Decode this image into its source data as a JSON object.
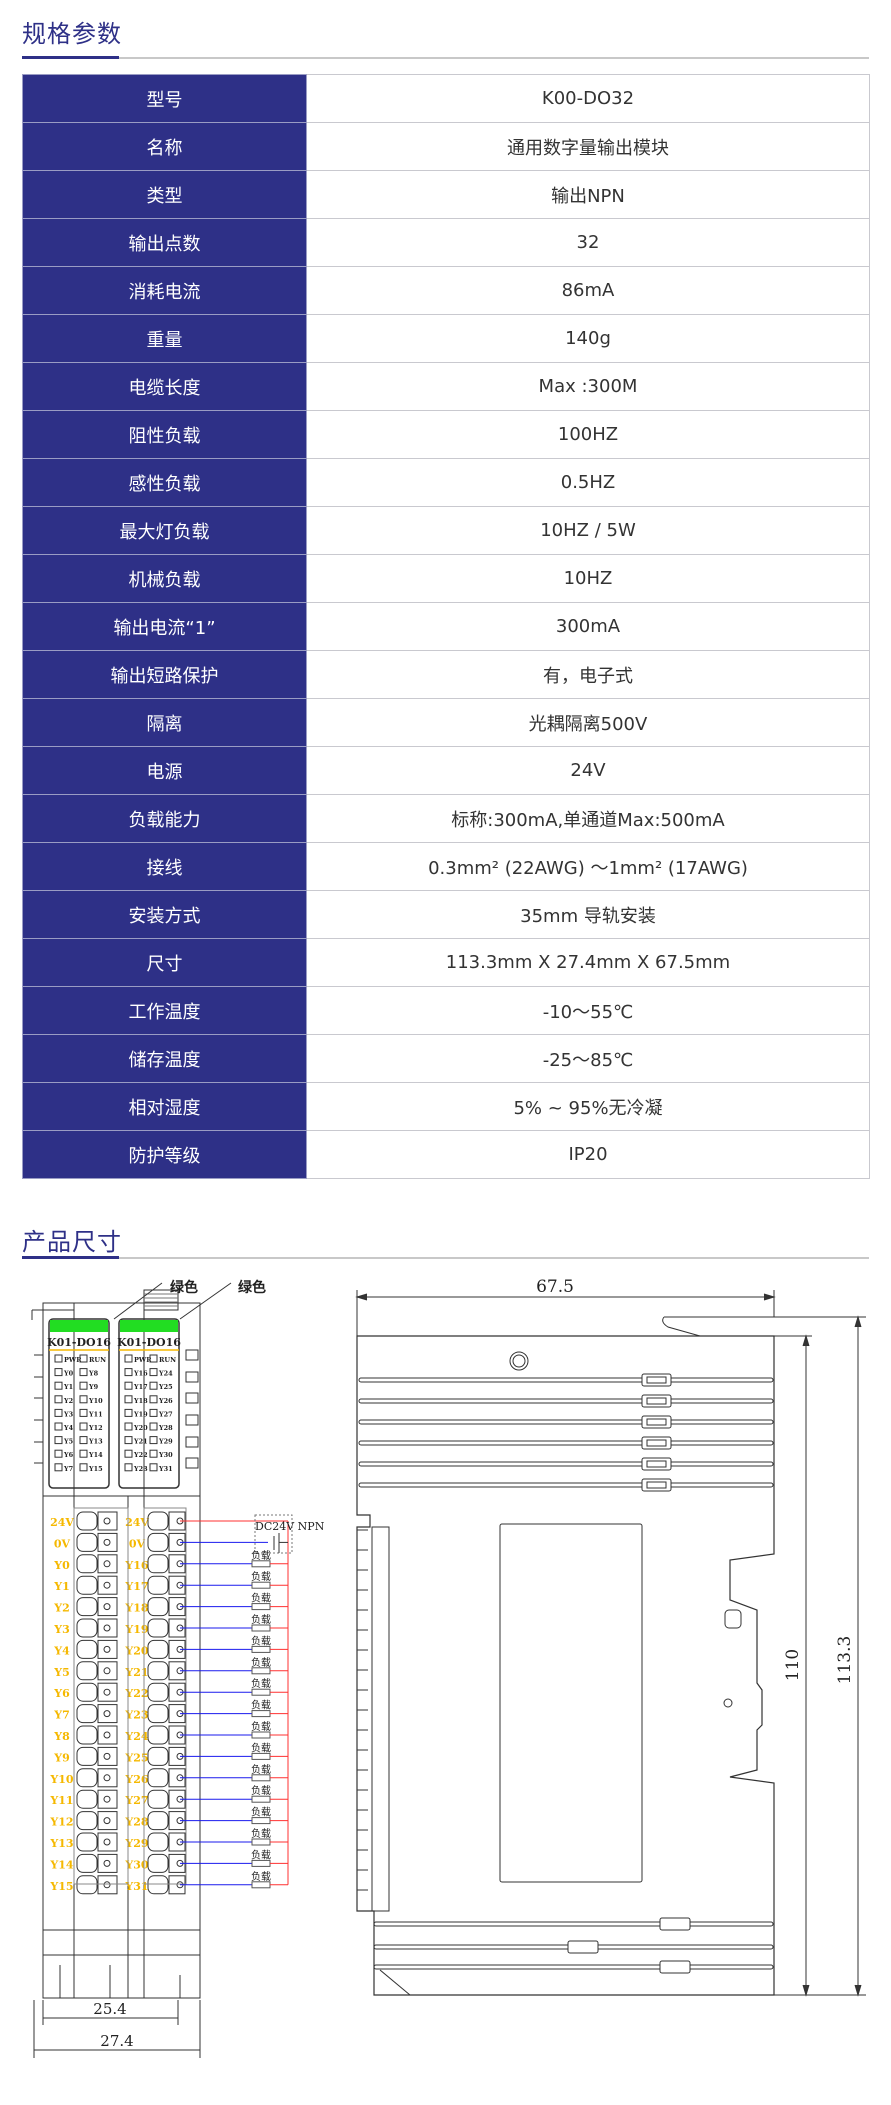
{
  "specs": {
    "title": "规格参数",
    "rows": [
      {
        "label": "型号",
        "value": "K00-DO32"
      },
      {
        "label": "名称",
        "value": "通用数字量输出模块"
      },
      {
        "label": "类型",
        "value": "输出NPN"
      },
      {
        "label": "输出点数",
        "value": "32"
      },
      {
        "label": "消耗电流",
        "value": "86mA"
      },
      {
        "label": "重量",
        "value": "140g"
      },
      {
        "label": "电缆长度",
        "value": "Max :300M"
      },
      {
        "label": "阻性负载",
        "value": "100HZ"
      },
      {
        "label": "感性负载",
        "value": "0.5HZ"
      },
      {
        "label": "最大灯负载",
        "value": "10HZ / 5W"
      },
      {
        "label": "机械负载",
        "value": "10HZ"
      },
      {
        "label": "输出电流“1”",
        "value": "300mA"
      },
      {
        "label": "输出短路保护",
        "value": "有，电子式"
      },
      {
        "label": "隔离",
        "value": "光耦隔离500V"
      },
      {
        "label": "电源",
        "value": "24V"
      },
      {
        "label": "负载能力",
        "value": "标称:300mA,单通道Max:500mA"
      },
      {
        "label": "接线",
        "value": "0.3mm² (22AWG) ～1mm² (17AWG)"
      },
      {
        "label": "安装方式",
        "value": "35mm 导轨安装"
      },
      {
        "label": "尺寸",
        "value": "113.3mm X 27.4mm X 67.5mm"
      },
      {
        "label": "工作温度",
        "value": "-10～55℃"
      },
      {
        "label": "储存温度",
        "value": "-25～85℃"
      },
      {
        "label": "相对湿度",
        "value": "5% ~ 95%无冷凝"
      },
      {
        "label": "防护等级",
        "value": "IP20"
      }
    ]
  },
  "dimensions": {
    "title": "产品尺寸",
    "callouts": [
      "绿色",
      "绿色"
    ],
    "module_labels": [
      "K01-DO16",
      "K01-DO16"
    ],
    "led_labels": [
      {
        "left": [
          "PWR",
          "Y0",
          "Y1",
          "Y2",
          "Y3",
          "Y4",
          "Y5",
          "Y6",
          "Y7"
        ],
        "right": [
          "RUN",
          "Y8",
          "Y9",
          "Y10",
          "Y11",
          "Y12",
          "Y13",
          "Y14",
          "Y15"
        ]
      },
      {
        "left": [
          "PWR",
          "Y16",
          "Y17",
          "Y18",
          "Y19",
          "Y20",
          "Y21",
          "Y22",
          "Y23"
        ],
        "right": [
          "RUN",
          "Y24",
          "Y25",
          "Y26",
          "Y27",
          "Y28",
          "Y29",
          "Y30",
          "Y31"
        ]
      }
    ],
    "terminals_left": [
      "24V",
      "0V",
      "Y0",
      "Y1",
      "Y2",
      "Y3",
      "Y4",
      "Y5",
      "Y6",
      "Y7",
      "Y8",
      "Y9",
      "Y10",
      "Y11",
      "Y12",
      "Y13",
      "Y14",
      "Y15"
    ],
    "terminals_right": [
      "24V",
      "0V",
      "Y16",
      "Y17",
      "Y18",
      "Y19",
      "Y20",
      "Y21",
      "Y22",
      "Y23",
      "Y24",
      "Y25",
      "Y26",
      "Y27",
      "Y28",
      "Y29",
      "Y30",
      "Y31"
    ],
    "power_label": "DC24V NPN",
    "load_label": "负载",
    "dim_front_inner": "25.4",
    "dim_front_outer": "27.4",
    "dim_side_width": "67.5",
    "dim_side_inner_height": "110",
    "dim_side_height": "113.3",
    "colors": {
      "accent": "#2e3087",
      "led_green": "#22dd22",
      "terminal_label": "#f5b800",
      "wire_positive": "#ff3030",
      "wire_negative": "#1a1aee"
    }
  }
}
